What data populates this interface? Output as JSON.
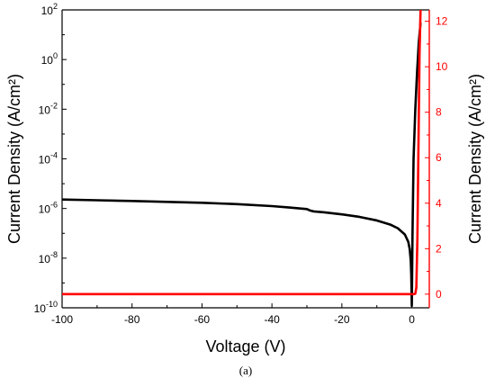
{
  "chart_data": {
    "type": "line",
    "caption": "(a)",
    "xlabel": "Voltage (V)",
    "ylabel_left": "Current Density (A/cm²)",
    "ylabel_right": "Current Density (A/cm²)",
    "xlim": [
      -100,
      5
    ],
    "x_ticks": [
      -100,
      -80,
      -60,
      -40,
      -20,
      0
    ],
    "left_axis": {
      "scale": "log",
      "ylim": [
        1e-10,
        100
      ],
      "ticks": [
        {
          "value": 1e-10,
          "mantissa": "10",
          "exp": "-10"
        },
        {
          "value": 1e-08,
          "mantissa": "10",
          "exp": "-8"
        },
        {
          "value": 1e-06,
          "mantissa": "10",
          "exp": "-6"
        },
        {
          "value": 0.0001,
          "mantissa": "10",
          "exp": "-4"
        },
        {
          "value": 0.01,
          "mantissa": "10",
          "exp": "-2"
        },
        {
          "value": 1,
          "mantissa": "10",
          "exp": "0"
        },
        {
          "value": 100,
          "mantissa": "10",
          "exp": "2"
        }
      ],
      "color": "#000000"
    },
    "right_axis": {
      "scale": "linear",
      "ylim": [
        -0.6,
        12.5
      ],
      "ticks": [
        0,
        2,
        4,
        6,
        8,
        10,
        12
      ],
      "color": "#ff0000"
    },
    "series": [
      {
        "axis": "left",
        "color": "#000000",
        "x": [
          -100,
          -90,
          -80,
          -70,
          -60,
          -50,
          -40,
          -35,
          -30,
          -29,
          -28,
          -25,
          -20,
          -15,
          -10,
          -6,
          -4,
          -2,
          -1,
          -0.6,
          -0.3,
          -0.15,
          0,
          0.2,
          0.5,
          1,
          1.5,
          2,
          2.5
        ],
        "y": [
          2.3e-06,
          2.15e-06,
          2e-06,
          1.85e-06,
          1.7e-06,
          1.5e-06,
          1.25e-06,
          1.1e-06,
          9.5e-07,
          8.2e-07,
          7.6e-07,
          7e-07,
          5.8e-07,
          4.6e-07,
          3.3e-07,
          2.2e-07,
          1.6e-07,
          9e-08,
          4.5e-08,
          2.3e-08,
          8e-09,
          2e-09,
          1.2e-10,
          1e-07,
          0.0001,
          0.01,
          0.3,
          5,
          30
        ]
      },
      {
        "axis": "right",
        "color": "#ff0000",
        "x": [
          -100,
          -50,
          0,
          0.5,
          1,
          1.3,
          1.6,
          1.9,
          2.2,
          2.5
        ],
        "y": [
          0,
          0,
          0,
          0,
          0.02,
          0.3,
          2.5,
          6.5,
          10.5,
          12.5
        ]
      }
    ]
  }
}
